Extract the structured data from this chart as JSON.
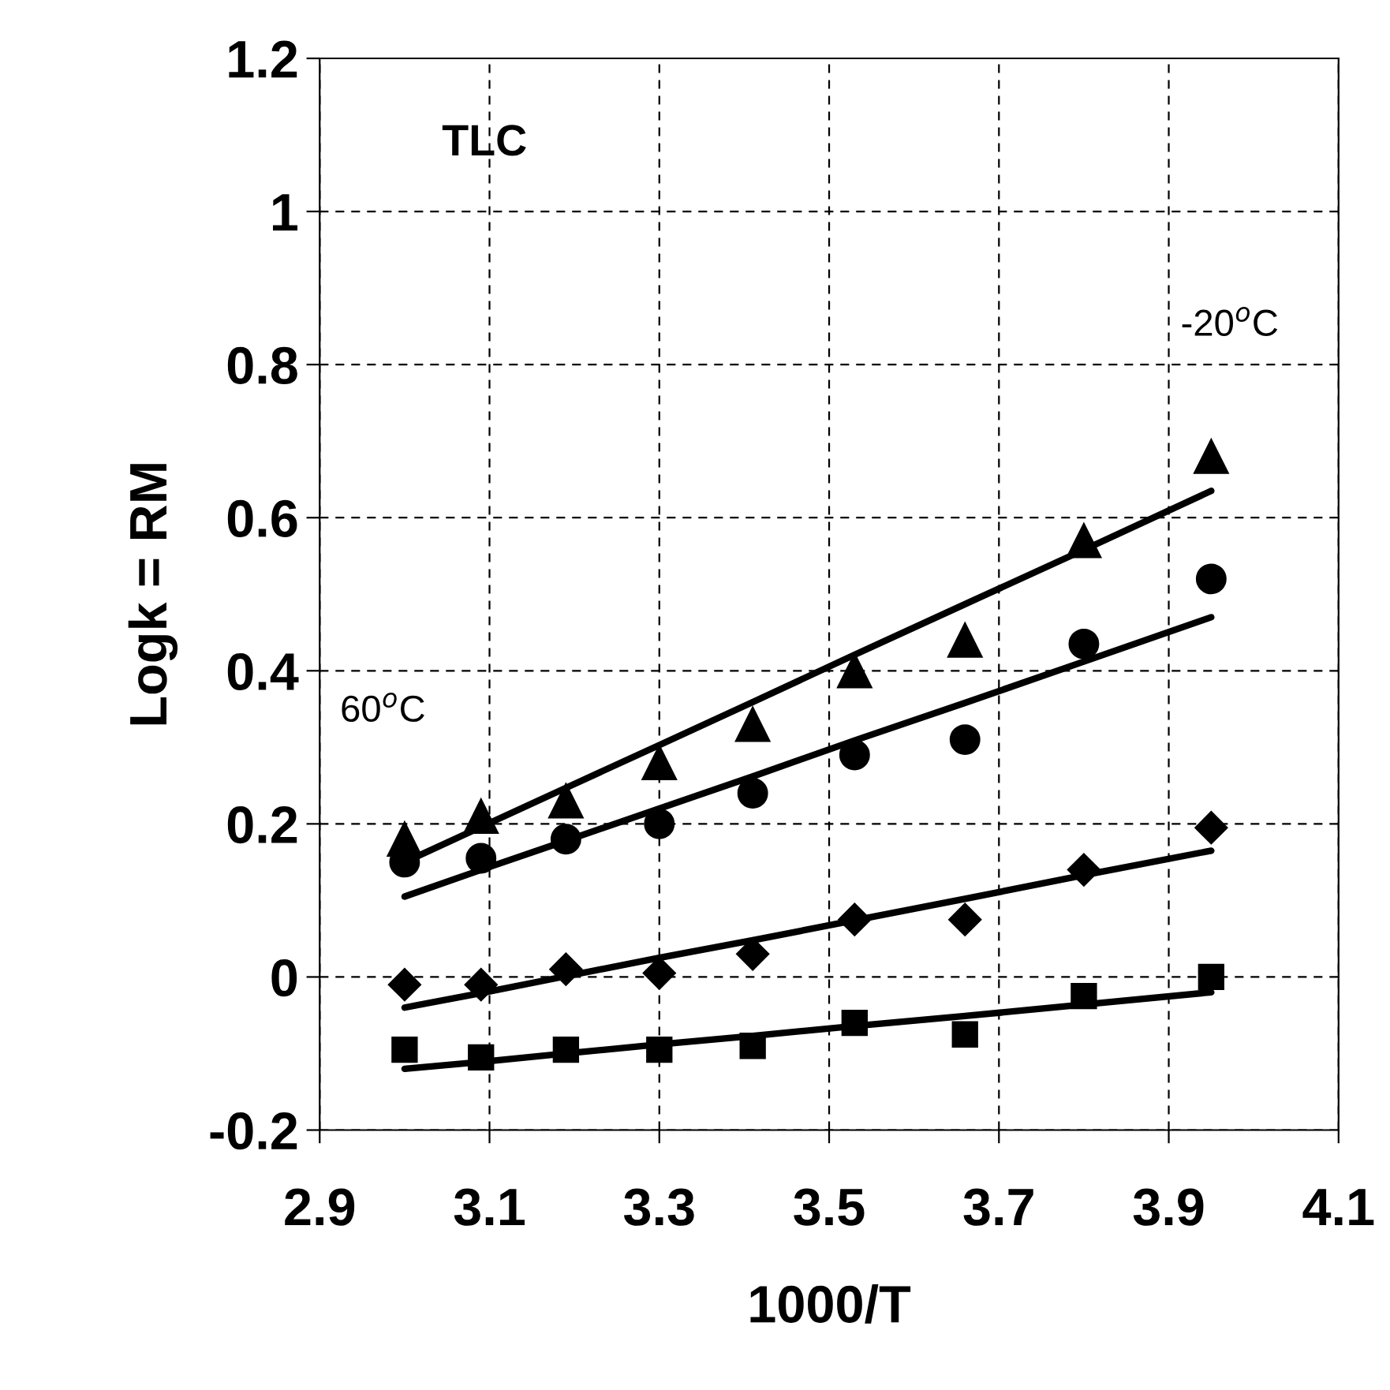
{
  "chart_data": {
    "type": "scatter",
    "xlabel": "1000/T",
    "ylabel": "Logk = RM",
    "x": [
      3.0,
      3.09,
      3.19,
      3.3,
      3.41,
      3.53,
      3.66,
      3.8,
      3.95
    ],
    "xlim": [
      2.9,
      4.1
    ],
    "xticks": [
      2.9,
      3.1,
      3.3,
      3.5,
      3.7,
      3.9,
      4.1
    ],
    "ylim": [
      -0.2,
      1.2
    ],
    "yticks": [
      -0.2,
      0,
      0.2,
      0.4,
      0.6,
      0.8,
      1,
      1.2
    ],
    "grid": true,
    "series": [
      {
        "marker": "triangle",
        "color": "#000000",
        "values": [
          0.18,
          0.21,
          0.23,
          0.28,
          0.33,
          0.4,
          0.44,
          0.57,
          0.68
        ]
      },
      {
        "marker": "circle",
        "color": "#000000",
        "values": [
          0.15,
          0.155,
          0.18,
          0.2,
          0.24,
          0.29,
          0.31,
          0.435,
          0.52
        ]
      },
      {
        "marker": "diamond",
        "color": "#000000",
        "values": [
          -0.01,
          -0.01,
          0.01,
          0.005,
          0.03,
          0.075,
          0.075,
          0.14,
          0.195
        ]
      },
      {
        "marker": "square",
        "color": "#000000",
        "values": [
          -0.095,
          -0.105,
          -0.095,
          -0.095,
          -0.09,
          -0.06,
          -0.075,
          -0.025,
          0.0
        ]
      },
      {
        "type": "line",
        "marker": "none",
        "color": "#000000",
        "values": [
          0.15,
          0.196,
          0.247,
          0.303,
          0.359,
          0.421,
          0.487,
          0.558,
          0.635
        ]
      },
      {
        "type": "line",
        "marker": "none",
        "color": "#000000",
        "values": [
          0.105,
          0.14,
          0.178,
          0.22,
          0.262,
          0.309,
          0.358,
          0.412,
          0.47
        ]
      },
      {
        "type": "line",
        "marker": "none",
        "color": "#000000",
        "values": [
          -0.04,
          -0.021,
          0.001,
          0.025,
          0.048,
          0.074,
          0.102,
          0.133,
          0.165
        ]
      },
      {
        "type": "line",
        "marker": "none",
        "color": "#000000",
        "values": [
          -0.12,
          -0.111,
          -0.1,
          -0.088,
          -0.077,
          -0.064,
          -0.051,
          -0.036,
          -0.02
        ]
      }
    ],
    "annotations": [
      "TLC",
      "60$^{o}$C",
      "-20$^{o}$C"
    ]
  }
}
